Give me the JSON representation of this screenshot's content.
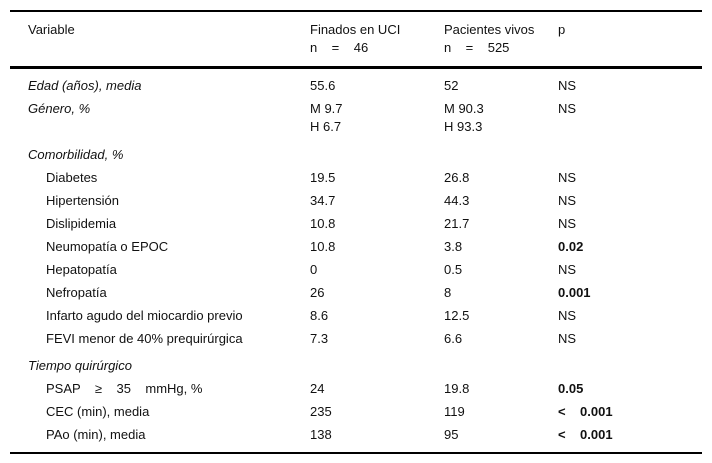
{
  "table": {
    "columns": [
      {
        "label": "Variable",
        "sub": ""
      },
      {
        "label": "Finados en UCI",
        "sub": "n    =    46"
      },
      {
        "label": "Pacientes vivos",
        "sub": "n    =    525"
      },
      {
        "label": "p",
        "sub": ""
      }
    ],
    "rows": [
      {
        "variable": "Edad (años), media",
        "italic": true,
        "indent": false,
        "section": false,
        "first": true,
        "finados": "55.6",
        "vivos": "52",
        "p": "NS",
        "p_bold": false
      },
      {
        "variable": "Género, %",
        "italic": true,
        "indent": false,
        "section": false,
        "finados": "M 9.7\nH 6.7",
        "vivos": "M 90.3\nH 93.3",
        "p": "NS",
        "p_bold": false
      },
      {
        "variable": "Comorbilidad, %",
        "italic": true,
        "indent": false,
        "section": true,
        "finados": "",
        "vivos": "",
        "p": "",
        "p_bold": false
      },
      {
        "variable": "Diabetes",
        "italic": false,
        "indent": true,
        "section": false,
        "finados": "19.5",
        "vivos": "26.8",
        "p": "NS",
        "p_bold": false
      },
      {
        "variable": "Hipertensión",
        "italic": false,
        "indent": true,
        "section": false,
        "finados": "34.7",
        "vivos": "44.3",
        "p": "NS",
        "p_bold": false
      },
      {
        "variable": "Dislipidemia",
        "italic": false,
        "indent": true,
        "section": false,
        "finados": "10.8",
        "vivos": "21.7",
        "p": "NS",
        "p_bold": false
      },
      {
        "variable": "Neumopatía o EPOC",
        "italic": false,
        "indent": true,
        "section": false,
        "finados": "10.8",
        "vivos": "3.8",
        "p": "0.02",
        "p_bold": true
      },
      {
        "variable": "Hepatopatía",
        "italic": false,
        "indent": true,
        "section": false,
        "finados": "0",
        "vivos": "0.5",
        "p": "NS",
        "p_bold": false
      },
      {
        "variable": "Nefropatía",
        "italic": false,
        "indent": true,
        "section": false,
        "finados": "26",
        "vivos": "8",
        "p": "0.001",
        "p_bold": true
      },
      {
        "variable": "Infarto agudo del miocardio previo",
        "italic": false,
        "indent": true,
        "section": false,
        "finados": "8.6",
        "vivos": "12.5",
        "p": "NS",
        "p_bold": false
      },
      {
        "variable": "FEVI menor de 40% prequirúrgica",
        "italic": false,
        "indent": true,
        "section": false,
        "finados": "7.3",
        "vivos": "6.6",
        "p": "NS",
        "p_bold": false
      },
      {
        "variable": "Tiempo quirúrgico",
        "italic": true,
        "indent": false,
        "section": true,
        "finados": "",
        "vivos": "",
        "p": "",
        "p_bold": false
      },
      {
        "variable": "PSAP    ≥    35    mmHg, %",
        "italic": false,
        "indent": true,
        "section": false,
        "finados": "24",
        "vivos": "19.8",
        "p": "0.05",
        "p_bold": true
      },
      {
        "variable": "CEC (min), media",
        "italic": false,
        "indent": true,
        "section": false,
        "finados": "235",
        "vivos": "119",
        "p": "<    0.001",
        "p_bold": true
      },
      {
        "variable": "PAo (min), media",
        "italic": false,
        "indent": true,
        "section": false,
        "last": true,
        "finados": "138",
        "vivos": "95",
        "p": "<    0.001",
        "p_bold": true
      }
    ]
  }
}
